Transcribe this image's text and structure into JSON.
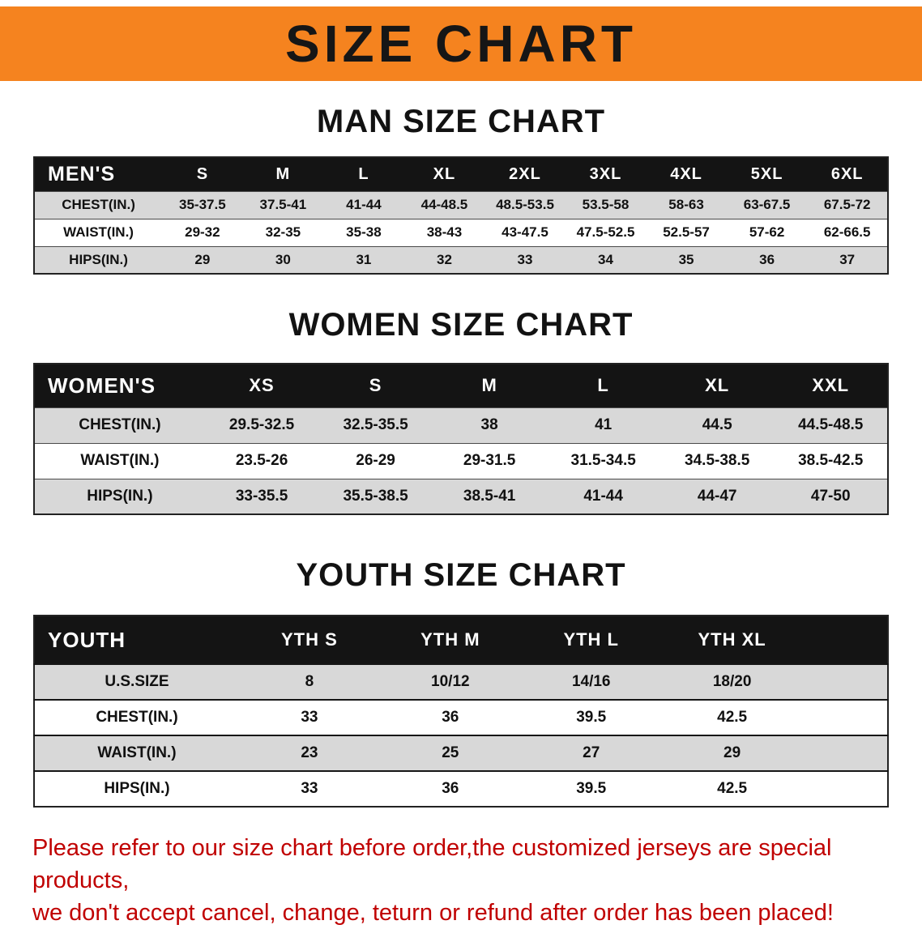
{
  "banner": {
    "title": "SIZE CHART"
  },
  "sections": [
    {
      "id": "men",
      "title": "MAN SIZE CHART",
      "table": {
        "header": [
          "MEN'S",
          "S",
          "M",
          "L",
          "XL",
          "2XL",
          "3XL",
          "4XL",
          "5XL",
          "6XL"
        ],
        "rows": [
          [
            "CHEST(IN.)",
            "35-37.5",
            "37.5-41",
            "41-44",
            "44-48.5",
            "48.5-53.5",
            "53.5-58",
            "58-63",
            "63-67.5",
            "67.5-72"
          ],
          [
            "WAIST(IN.)",
            "29-32",
            "32-35",
            "35-38",
            "38-43",
            "43-47.5",
            "47.5-52.5",
            "52.5-57",
            "57-62",
            "62-66.5"
          ],
          [
            "HIPS(IN.)",
            "29",
            "30",
            "31",
            "32",
            "33",
            "34",
            "35",
            "36",
            "37"
          ]
        ]
      }
    },
    {
      "id": "women",
      "title": "WOMEN SIZE CHART",
      "table": {
        "header": [
          "WOMEN'S",
          "XS",
          "S",
          "M",
          "L",
          "XL",
          "XXL"
        ],
        "rows": [
          [
            "CHEST(IN.)",
            "29.5-32.5",
            "32.5-35.5",
            "38",
            "41",
            "44.5",
            "44.5-48.5"
          ],
          [
            "WAIST(IN.)",
            "23.5-26",
            "26-29",
            "29-31.5",
            "31.5-34.5",
            "34.5-38.5",
            "38.5-42.5"
          ],
          [
            "HIPS(IN.)",
            "33-35.5",
            "35.5-38.5",
            "38.5-41",
            "41-44",
            "44-47",
            "47-50"
          ]
        ]
      }
    },
    {
      "id": "youth",
      "title": "YOUTH SIZE CHART",
      "table": {
        "header": [
          "YOUTH",
          "YTH S",
          "YTH M",
          "YTH L",
          "YTH XL"
        ],
        "rows": [
          [
            "U.S.SIZE",
            "8",
            "10/12",
            "14/16",
            "18/20"
          ],
          [
            "CHEST(IN.)",
            "33",
            "36",
            "39.5",
            "42.5"
          ],
          [
            "WAIST(IN.)",
            "23",
            "25",
            "27",
            "29"
          ],
          [
            "HIPS(IN.)",
            "33",
            "36",
            "39.5",
            "42.5"
          ]
        ]
      }
    }
  ],
  "footer": {
    "lines": [
      "Please refer to our size chart before order,the customized jerseys are special products,",
      "we don't accept cancel, change, teturn or refund after order has been placed!"
    ]
  },
  "colors": {
    "banner_bg": "#F5831F",
    "header_bg": "#141414",
    "shade_row": "#D8D8D8",
    "footer_text": "#C00000"
  }
}
